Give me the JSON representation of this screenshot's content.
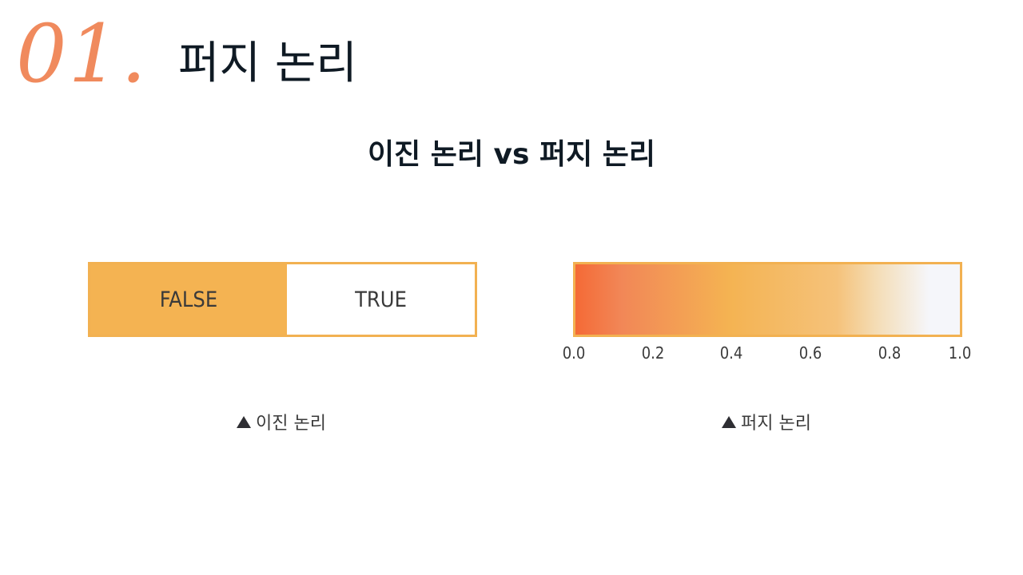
{
  "header": {
    "slide_number": "01.",
    "title": "퍼지 논리"
  },
  "subtitle": "이진 논리 vs 퍼지 논리",
  "binary_logic": {
    "false_label": "FALSE",
    "true_label": "TRUE",
    "caption": "이진 논리"
  },
  "fuzzy_logic": {
    "ticks": [
      "0.0",
      "0.2",
      "0.4",
      "0.6",
      "0.8",
      "1.0"
    ],
    "caption": "퍼지 논리"
  },
  "colors": {
    "accent_orange": "#f08a5d",
    "bar_border": "#f2b151",
    "false_fill": "#f4b352",
    "gradient_start": "#f46a36",
    "gradient_end": "#f5f6fa"
  },
  "icons": {
    "caption_marker": "triangle-up-icon"
  }
}
